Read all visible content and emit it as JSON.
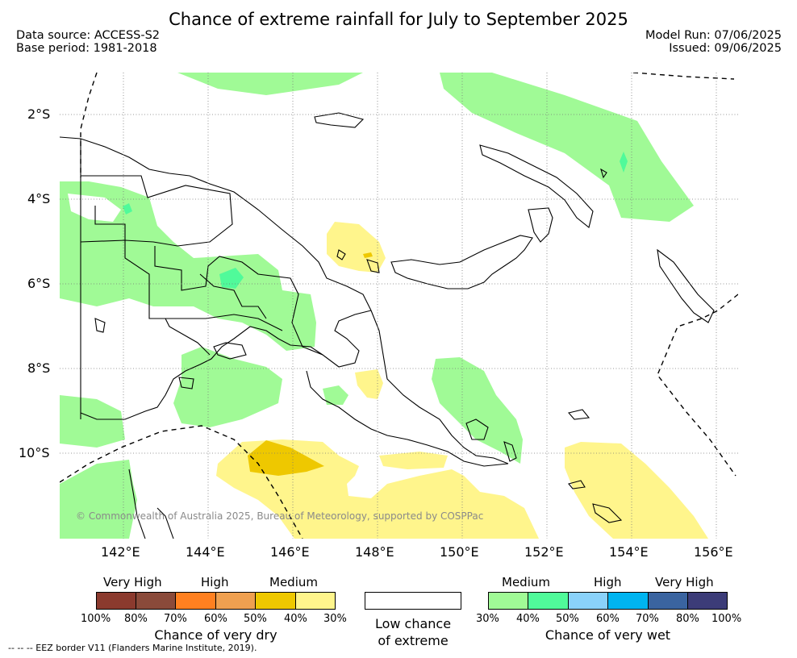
{
  "title": "Chance of extreme rainfall for July to September 2025",
  "data_source": "Data source: ACCESS-S2",
  "base_period": "Base period: 1981-2018",
  "model_run": "Model Run: 07/06/2025",
  "issued": "Issued: 09/06/2025",
  "lat_labels": [
    "2°S",
    "4°S",
    "6°S",
    "8°S",
    "10°S"
  ],
  "lon_labels": [
    "142°E",
    "144°E",
    "146°E",
    "148°E",
    "150°E",
    "152°E",
    "154°E",
    "156°E"
  ],
  "copyright": "© Commonwealth of Australia 2025, Bureau of Meteorology, supported by COSPPac",
  "eez_note": "--  --  -- EEZ border V11 (Flanders Marine Institute, 2019).",
  "colors": {
    "dry": [
      "#8b3a2e",
      "#8a4a3a",
      "#ff8020",
      "#efa050",
      "#eec800",
      "#fff58c"
    ],
    "wet": [
      "#a0fa96",
      "#50fa9a",
      "#8ad2fa",
      "#00b4f0",
      "#3a64a0",
      "#3c3c78"
    ],
    "land": "#000000"
  },
  "legend": {
    "dry": {
      "groups": [
        "Very High",
        "High",
        "Medium"
      ],
      "ticks": [
        "100%",
        "80%",
        "70%",
        "60%",
        "50%",
        "40%",
        "30%"
      ],
      "caption": "Chance of very dry"
    },
    "low": {
      "line1": "Low chance",
      "line2": "of extreme"
    },
    "wet": {
      "groups": [
        "Medium",
        "High",
        "Very High"
      ],
      "ticks": [
        "30%",
        "40%",
        "50%",
        "60%",
        "70%",
        "80%",
        "100%"
      ],
      "caption": "Chance of very wet"
    }
  }
}
